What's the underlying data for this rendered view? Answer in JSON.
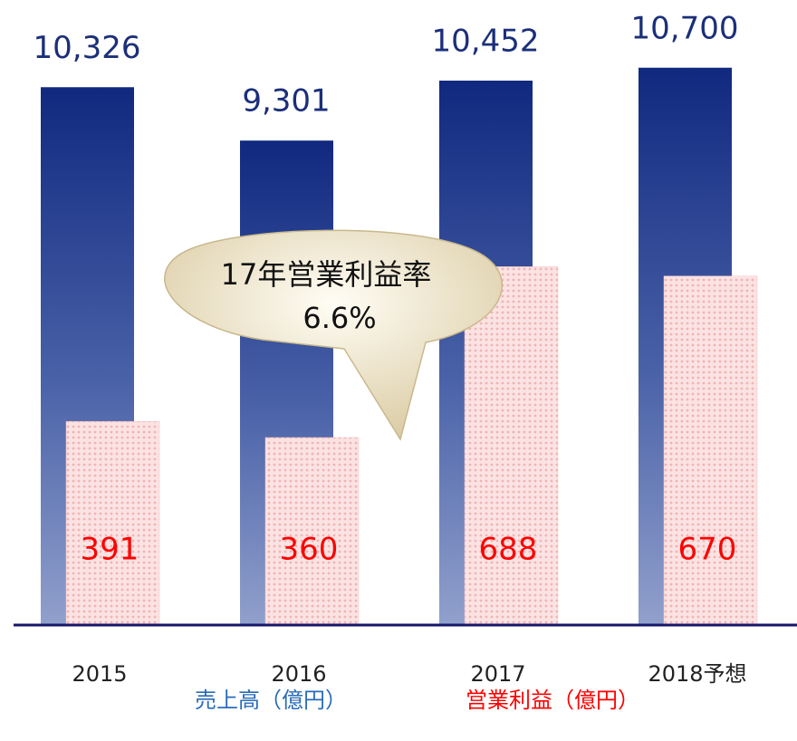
{
  "chart_data": {
    "type": "bar",
    "categories": [
      "2015",
      "2016",
      "2017",
      "2018予想"
    ],
    "series": [
      {
        "name": "売上高（億円）",
        "color": "#1b3a8a",
        "values": [
          10326,
          9301,
          10452,
          10700
        ],
        "value_labels": [
          "10,326",
          "9,301",
          "10,452",
          "10,700"
        ]
      },
      {
        "name": "営業利益（億円）",
        "color": "#f5c2c2",
        "axis": "y2",
        "values": [
          391,
          360,
          688,
          670
        ]
      }
    ],
    "annotations": [
      "17年営業利益率",
      "6.6%"
    ],
    "ylim": [
      0,
      12000
    ],
    "y2lim": [
      0,
      1200
    ]
  }
}
